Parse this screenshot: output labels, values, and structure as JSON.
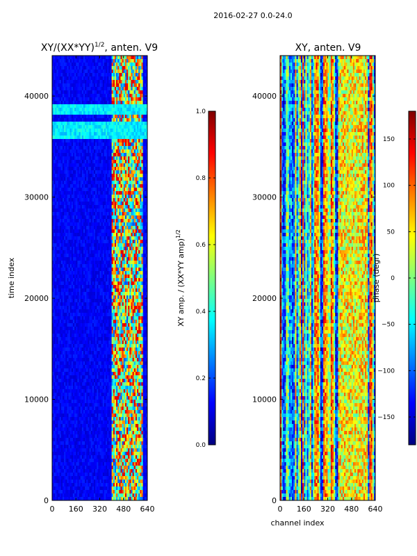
{
  "figure": {
    "suptitle": "2016-02-27 0.0-24.0",
    "xlabel_shared": "channel index"
  },
  "colors": {
    "jet": [
      "#00007f",
      "#0000ff",
      "#007fff",
      "#00ffff",
      "#7fff7f",
      "#ffff00",
      "#ff7f00",
      "#ff0000",
      "#7f0000"
    ],
    "axis": "#000000",
    "background": "#ffffff"
  },
  "chart_data": [
    {
      "type": "heatmap",
      "title": "XY/(XX*YY)^{1/2}, anten. V9",
      "title_main": "XY/(XX*YY)",
      "title_exp": "1/2",
      "title_rest": ", anten. V9",
      "xlabel": "",
      "ylabel": "time index",
      "xlim": [
        0,
        640
      ],
      "ylim": [
        0,
        44000
      ],
      "xticks": [
        0,
        160,
        320,
        480,
        640
      ],
      "xtick_labels": [
        "0",
        "160",
        "320",
        "480",
        "640"
      ],
      "yticks": [
        0,
        10000,
        20000,
        30000,
        40000
      ],
      "ytick_labels": [
        "0",
        "10000",
        "20000",
        "30000",
        "40000"
      ],
      "quantity": "normalized XY amplitude",
      "colorbar": {
        "label": "XY amp. / (XX*YY amp)^{1/2}",
        "label_main": "XY amp. / (XX*YY amp)",
        "label_exp": "1/2",
        "range": [
          0.0,
          1.0
        ],
        "ticks": [
          0.0,
          0.2,
          0.4,
          0.6,
          0.8,
          1.0
        ],
        "tick_labels": [
          "0.0",
          "0.2",
          "0.4",
          "0.6",
          "0.8",
          "1.0"
        ],
        "colormap": "jet"
      },
      "features": {
        "high_value_channel_range": [
          400,
          600
        ],
        "low_value_band_time_ranges": [
          [
            36000,
            37500
          ],
          [
            38500,
            39500
          ]
        ]
      }
    },
    {
      "type": "heatmap",
      "title": "XY, anten. V9",
      "xlabel": "channel index",
      "ylabel": "",
      "xlim": [
        0,
        640
      ],
      "ylim": [
        0,
        44000
      ],
      "xticks": [
        0,
        160,
        320,
        480,
        640
      ],
      "xtick_labels": [
        "0",
        "160",
        "320",
        "480",
        "640"
      ],
      "yticks": [
        0,
        10000,
        20000,
        30000,
        40000
      ],
      "ytick_labels": [
        "0",
        "10000",
        "20000",
        "30000",
        "40000"
      ],
      "quantity": "XY phase (degrees)",
      "colorbar": {
        "label": "phase (degr)",
        "range": [
          -180,
          180
        ],
        "ticks": [
          -150,
          -100,
          -50,
          0,
          50,
          100,
          150
        ],
        "tick_labels": [
          "−150",
          "−100",
          "−50",
          "0",
          "50",
          "100",
          "150"
        ],
        "colormap": "jet"
      }
    }
  ]
}
